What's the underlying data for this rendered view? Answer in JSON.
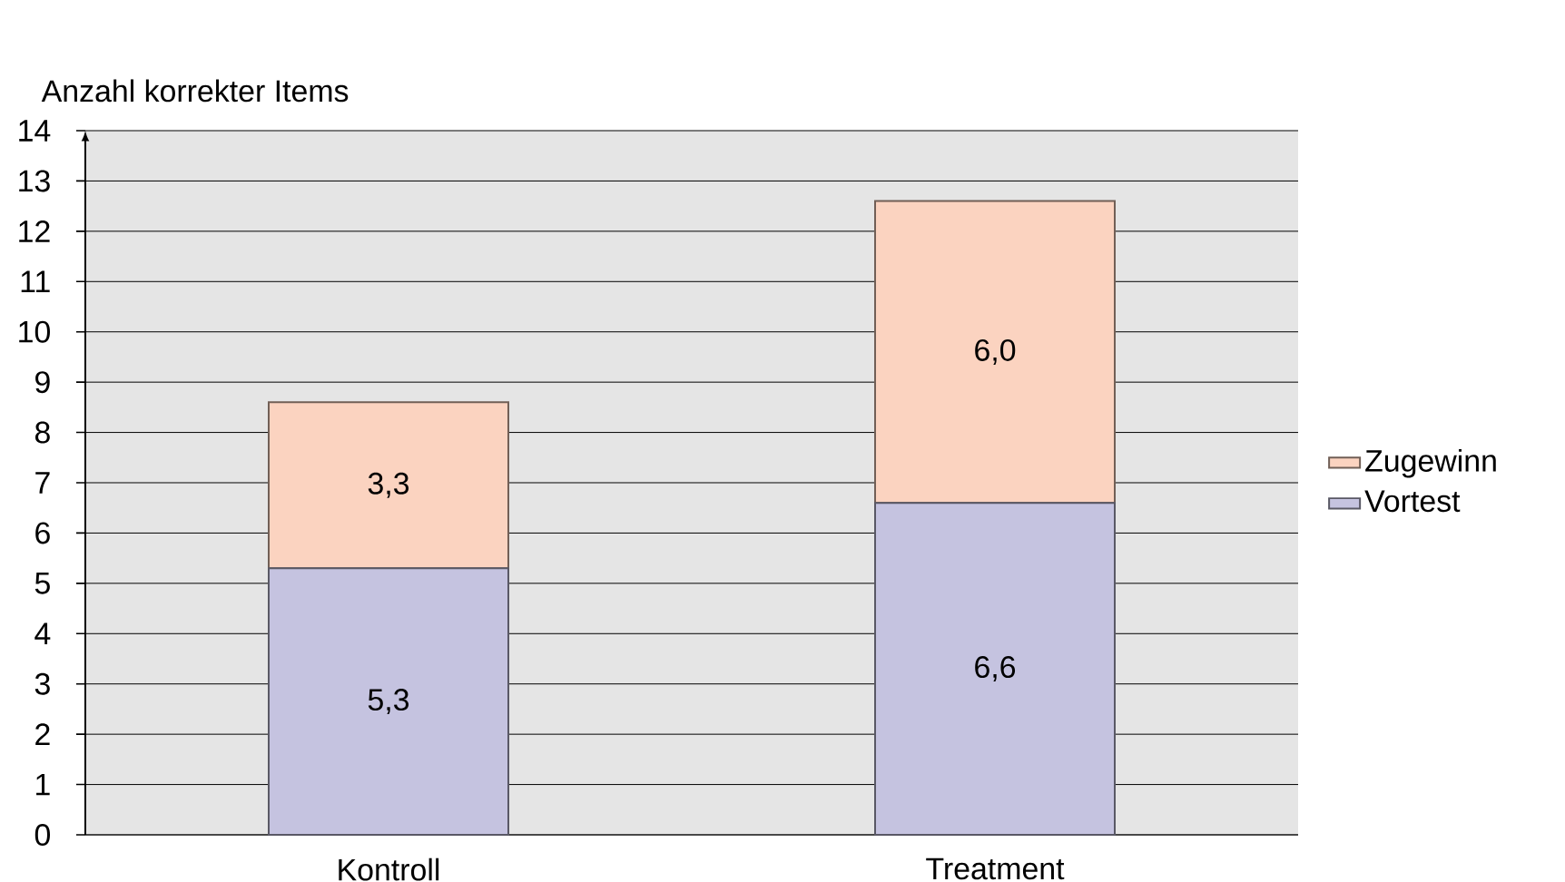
{
  "chart_data": {
    "type": "bar",
    "stacked": true,
    "ylabel": "Anzahl korrekter Items",
    "categories": [
      "Kontroll",
      "Treatment"
    ],
    "series": [
      {
        "name": "Vortest",
        "color": "#c5c3e0",
        "values": [
          5.3,
          6.6
        ],
        "value_labels": [
          "5,3",
          "6,6"
        ]
      },
      {
        "name": "Zugewinn",
        "color": "#fbd3c0",
        "values": [
          3.3,
          6.0
        ],
        "value_labels": [
          "3,3",
          "6,0"
        ]
      }
    ],
    "ylim": [
      0,
      14
    ],
    "yticks": [
      0,
      1,
      2,
      3,
      4,
      5,
      6,
      7,
      8,
      9,
      10,
      11,
      12,
      13,
      14
    ],
    "grid": "y",
    "legend": "right"
  }
}
